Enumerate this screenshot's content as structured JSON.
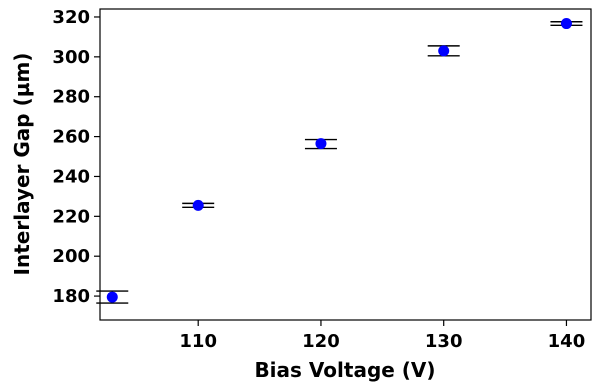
{
  "chart_data": {
    "type": "scatter",
    "title": "",
    "xlabel": "Bias Voltage (V)",
    "ylabel": "Interlayer Gap (µm)",
    "xlim": [
      102,
      142
    ],
    "ylim": [
      168,
      324
    ],
    "xticks": [
      110,
      120,
      130,
      140
    ],
    "yticks": [
      180,
      200,
      220,
      240,
      260,
      280,
      300,
      320
    ],
    "grid": false,
    "legend": "none",
    "series": [
      {
        "color": "#0000ff",
        "errorbar_color": "#000000",
        "points": [
          {
            "x": 103,
            "y": 179.5,
            "ylow": 176.5,
            "yhigh": 182.5
          },
          {
            "x": 110,
            "y": 225.5,
            "ylow": 224.5,
            "yhigh": 226.5
          },
          {
            "x": 120,
            "y": 256.5,
            "ylow": 254.0,
            "yhigh": 258.5
          },
          {
            "x": 130,
            "y": 303.0,
            "ylow": 300.5,
            "yhigh": 305.5
          },
          {
            "x": 140,
            "y": 316.7,
            "ylow": 315.8,
            "yhigh": 317.6
          }
        ]
      }
    ]
  }
}
